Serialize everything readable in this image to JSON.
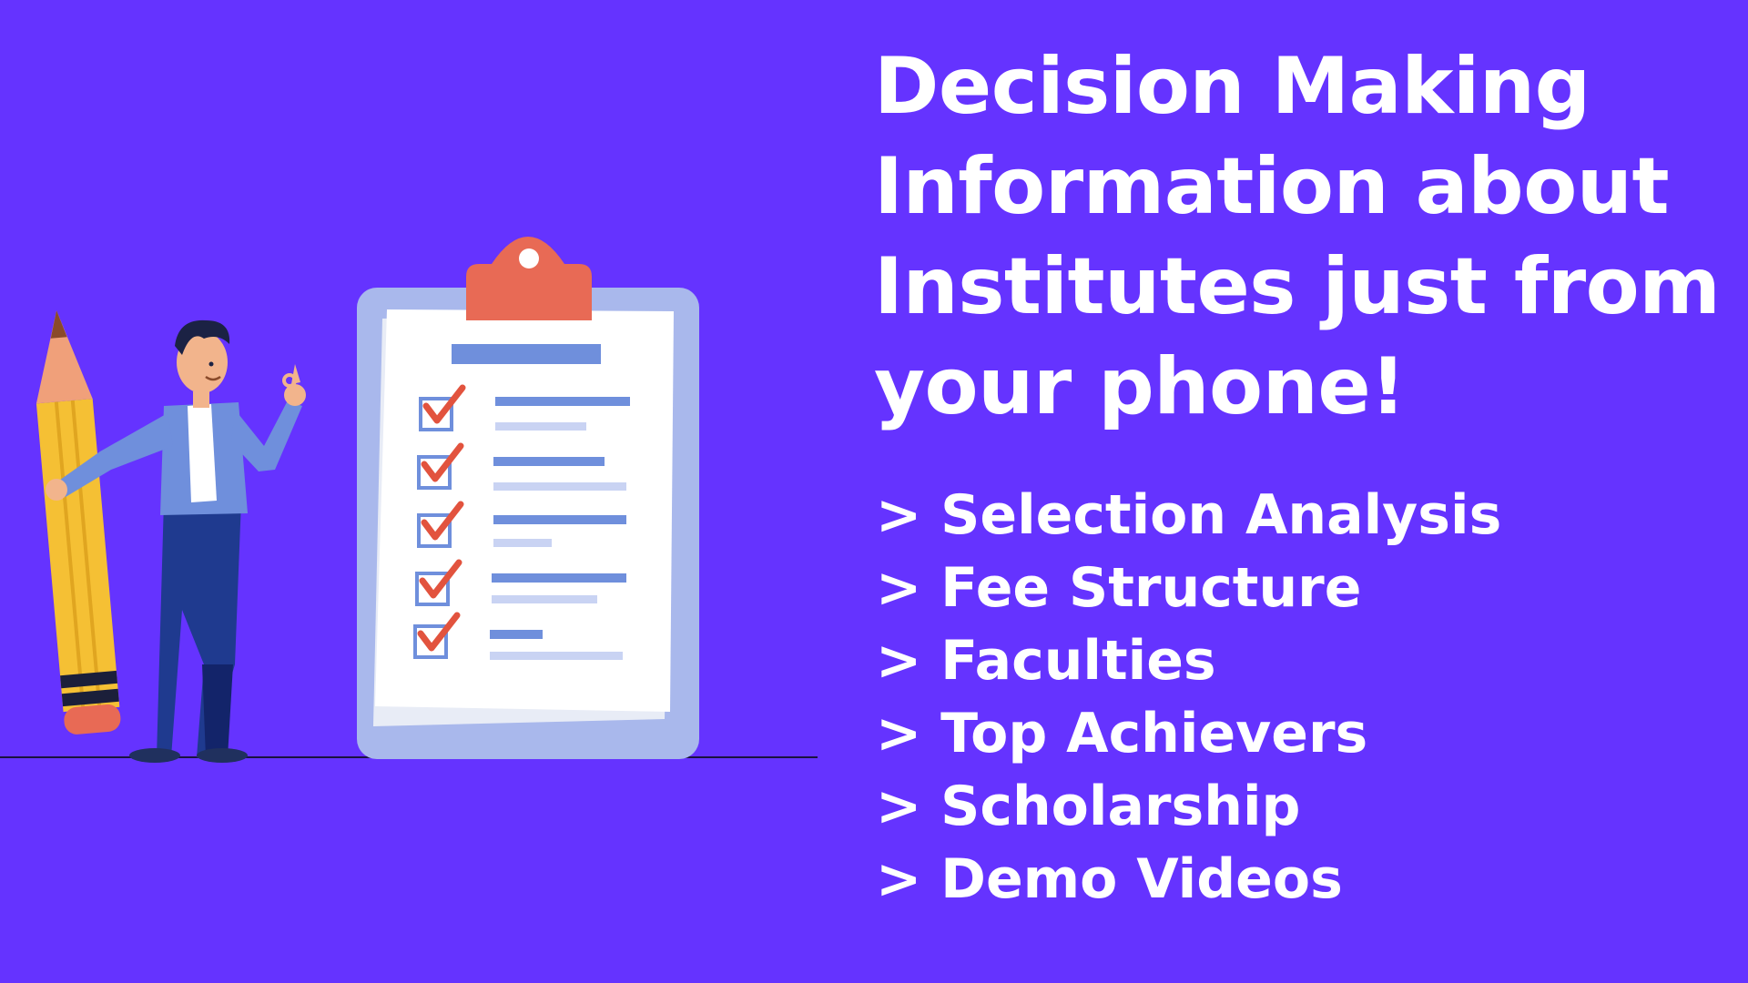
{
  "headline": {
    "lines": [
      "Decision Making",
      "Information about",
      "Institutes just from",
      "your phone!"
    ]
  },
  "features": {
    "items": [
      "> Selection Analysis",
      "> Fee Structure",
      "> Faculties",
      "> Top Achievers",
      "> Scholarship",
      "> Demo Videos"
    ]
  },
  "colors": {
    "background": "#6533FF",
    "text": "#FFFFFF",
    "clipboard_board": "#A9B8EC",
    "clip": "#E86A55",
    "checkmark": "#E2533E",
    "pencil": "#F5C034",
    "jacket": "#6F8FDC",
    "pants": "#1F3A8F"
  },
  "illustration": {
    "subject": "person-with-pencil-and-checklist-clipboard",
    "checklist_items": 5
  }
}
